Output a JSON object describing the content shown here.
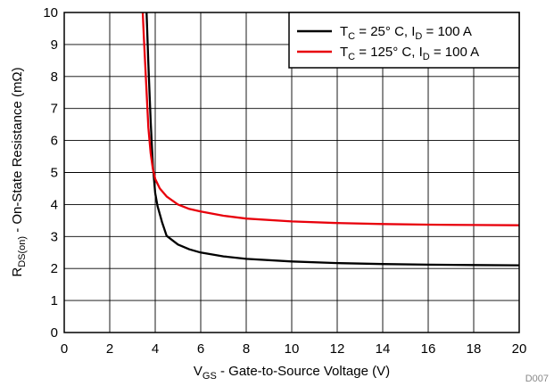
{
  "chart_data": {
    "type": "line",
    "title": "",
    "xlabel": {
      "main": "V",
      "sub": "GS",
      "rest": " - Gate-to-Source Voltage (V)"
    },
    "ylabel": {
      "main": "R",
      "sub": "DS(on)",
      "rest": " - On-State Resistance (mΩ)"
    },
    "xlim": [
      0,
      20
    ],
    "ylim": [
      0,
      10
    ],
    "xticks": [
      "0",
      "2",
      "4",
      "6",
      "8",
      "10",
      "12",
      "14",
      "16",
      "18",
      "20"
    ],
    "yticks": [
      "0",
      "1",
      "2",
      "3",
      "4",
      "5",
      "6",
      "7",
      "8",
      "9",
      "10"
    ],
    "grid": true,
    "legend_position": "top-right",
    "series": [
      {
        "legend": {
          "t": "T",
          "tsub": "C",
          "mid": " = 25° C, I",
          "isub": "D",
          "end": " = 100 A"
        },
        "color": "#000000",
        "x": [
          3.62,
          3.7,
          3.8,
          3.9,
          4.0,
          4.1,
          4.3,
          4.5,
          5.0,
          5.5,
          6.0,
          7.0,
          8.0,
          10.0,
          12.0,
          14.0,
          16.0,
          18.0,
          20.0
        ],
        "y": [
          10.0,
          8.4,
          6.6,
          5.2,
          4.35,
          3.95,
          3.45,
          3.02,
          2.75,
          2.6,
          2.5,
          2.38,
          2.3,
          2.22,
          2.17,
          2.14,
          2.12,
          2.11,
          2.1
        ]
      },
      {
        "legend": {
          "t": "T",
          "tsub": "C",
          "mid": " = 125° C, I",
          "isub": "D",
          "end": " = 100 A"
        },
        "color": "#e8000b",
        "x": [
          3.45,
          3.5,
          3.6,
          3.7,
          3.8,
          3.9,
          4.0,
          4.2,
          4.5,
          5.0,
          5.5,
          6.0,
          7.0,
          8.0,
          10.0,
          12.0,
          14.0,
          16.0,
          18.0,
          20.0
        ],
        "y": [
          10.0,
          9.2,
          7.8,
          6.4,
          5.6,
          5.1,
          4.8,
          4.5,
          4.25,
          4.0,
          3.86,
          3.78,
          3.65,
          3.56,
          3.47,
          3.42,
          3.39,
          3.37,
          3.36,
          3.35
        ]
      }
    ],
    "annotation": "D007"
  }
}
